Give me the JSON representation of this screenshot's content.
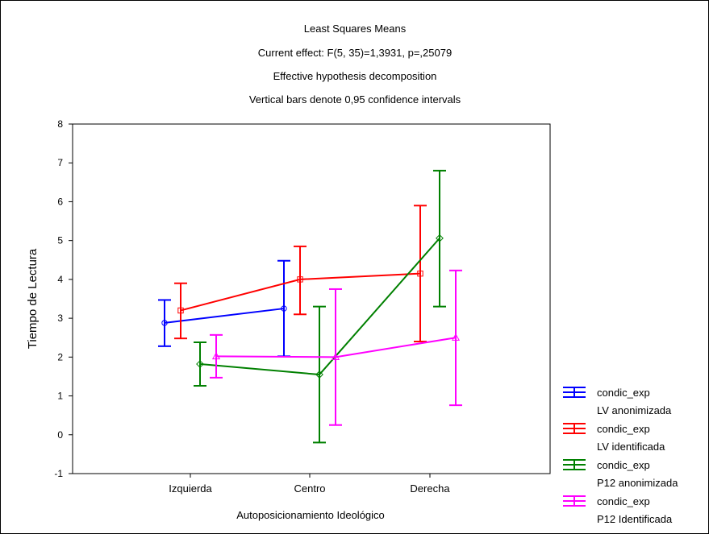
{
  "chart_data": {
    "type": "line",
    "title": "Least Squares Means",
    "subtitle_lines": [
      "Current effect: F(5, 35)=1,3931, p=,25079",
      "Effective hypothesis decomposition",
      "Vertical bars denote 0,95 confidence intervals"
    ],
    "xlabel": "Autoposicionamiento Ideológico",
    "ylabel": "Tiempo de Lectura",
    "categories": [
      "Izquierda",
      "Centro",
      "Derecha"
    ],
    "ylim": [
      -1,
      8
    ],
    "yticks": [
      "8",
      "7",
      "6",
      "5",
      "4",
      "3",
      "2",
      "1",
      "0",
      "-1"
    ],
    "grid": false,
    "legend_position": "bottom-right",
    "series": [
      {
        "name": "condic_exp LV anonimizada",
        "legend_line1": "condic_exp",
        "legend_line2": "LV anonimizada",
        "color": "#0000ff",
        "marker": "circle",
        "values": [
          2.88,
          3.25,
          null
        ],
        "ci_low": [
          2.28,
          2.02,
          null
        ],
        "ci_high": [
          3.47,
          4.48,
          null
        ]
      },
      {
        "name": "condic_exp LV identificada",
        "legend_line1": "condic_exp",
        "legend_line2": "LV identificada",
        "color": "#ff0000",
        "marker": "square",
        "values": [
          3.2,
          4.0,
          4.15
        ],
        "ci_low": [
          2.48,
          3.1,
          2.4
        ],
        "ci_high": [
          3.9,
          4.85,
          5.9
        ]
      },
      {
        "name": "condic_exp P12 anonimizada",
        "legend_line1": "condic_exp",
        "legend_line2": "P12 anonimizada",
        "color": "#008000",
        "marker": "diamond",
        "values": [
          1.82,
          1.55,
          5.06
        ],
        "ci_low": [
          1.26,
          -0.2,
          3.3
        ],
        "ci_high": [
          2.38,
          3.3,
          6.8
        ]
      },
      {
        "name": "condic_exp P12 Identificada",
        "legend_line1": "condic_exp",
        "legend_line2": "P12 Identificada",
        "color": "#ff00ff",
        "marker": "triangle",
        "values": [
          2.02,
          2.0,
          2.5
        ],
        "ci_low": [
          1.47,
          0.25,
          0.76
        ],
        "ci_high": [
          2.57,
          3.75,
          4.23
        ]
      }
    ]
  }
}
